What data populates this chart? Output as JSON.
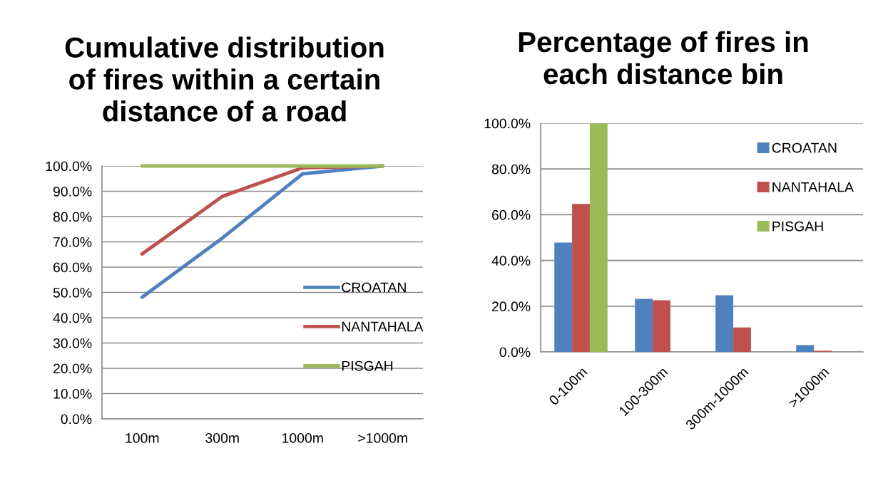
{
  "chart_data": [
    {
      "type": "line",
      "title": "Cumulative distribution of fires within a certain distance of a road",
      "categories": [
        "100m",
        "300m",
        "1000m",
        ">1000m"
      ],
      "series": [
        {
          "name": "CROATAN",
          "color": "#4f81bd",
          "values": [
            48.1,
            71.5,
            96.9,
            100
          ]
        },
        {
          "name": "NANTAHALA",
          "color": "#c0504d",
          "values": [
            65.2,
            88,
            99.3,
            100
          ]
        },
        {
          "name": "PISGAH",
          "color": "#9bbb59",
          "values": [
            100,
            100,
            100,
            100
          ]
        }
      ],
      "ylim": [
        0,
        100
      ],
      "yticks": [
        {
          "value": 0,
          "label": "0.0%"
        },
        {
          "value": 10,
          "label": "10.0%"
        },
        {
          "value": 20,
          "label": "20.0%"
        },
        {
          "value": 30,
          "label": "30.0%"
        },
        {
          "value": 40,
          "label": "40.0%"
        },
        {
          "value": 50,
          "label": "50.0%"
        },
        {
          "value": 60,
          "label": "60.0%"
        },
        {
          "value": 70,
          "label": "70.0%"
        },
        {
          "value": 80,
          "label": "80.0%"
        },
        {
          "value": 90,
          "label": "90.0%"
        },
        {
          "value": 100,
          "label": "100.0%"
        }
      ],
      "grid": "y",
      "legend": "right",
      "marker": "none",
      "line_style": "solid"
    },
    {
      "type": "bar",
      "title": "Percentage of fires in each distance bin",
      "categories": [
        "0-100m",
        "100-300m",
        "300m-1000m",
        ">1000m"
      ],
      "series": [
        {
          "name": "CROATAN",
          "color": "#4f81bd",
          "values": [
            47.8,
            23.2,
            24.8,
            3.0
          ]
        },
        {
          "name": "NANTAHALA",
          "color": "#c0504d",
          "values": [
            64.7,
            22.6,
            10.7,
            0.5
          ]
        },
        {
          "name": "PISGAH",
          "color": "#9bbb59",
          "values": [
            100,
            0,
            0,
            0
          ]
        }
      ],
      "ylim": [
        0,
        100
      ],
      "yticks": [
        {
          "value": 0,
          "label": "0.0%"
        },
        {
          "value": 20,
          "label": "20.0%"
        },
        {
          "value": 40,
          "label": "40.0%"
        },
        {
          "value": 60,
          "label": "60.0%"
        },
        {
          "value": 80,
          "label": "80.0%"
        },
        {
          "value": 100,
          "label": "100.0%"
        }
      ],
      "grid": "y",
      "legend": "top right"
    }
  ]
}
